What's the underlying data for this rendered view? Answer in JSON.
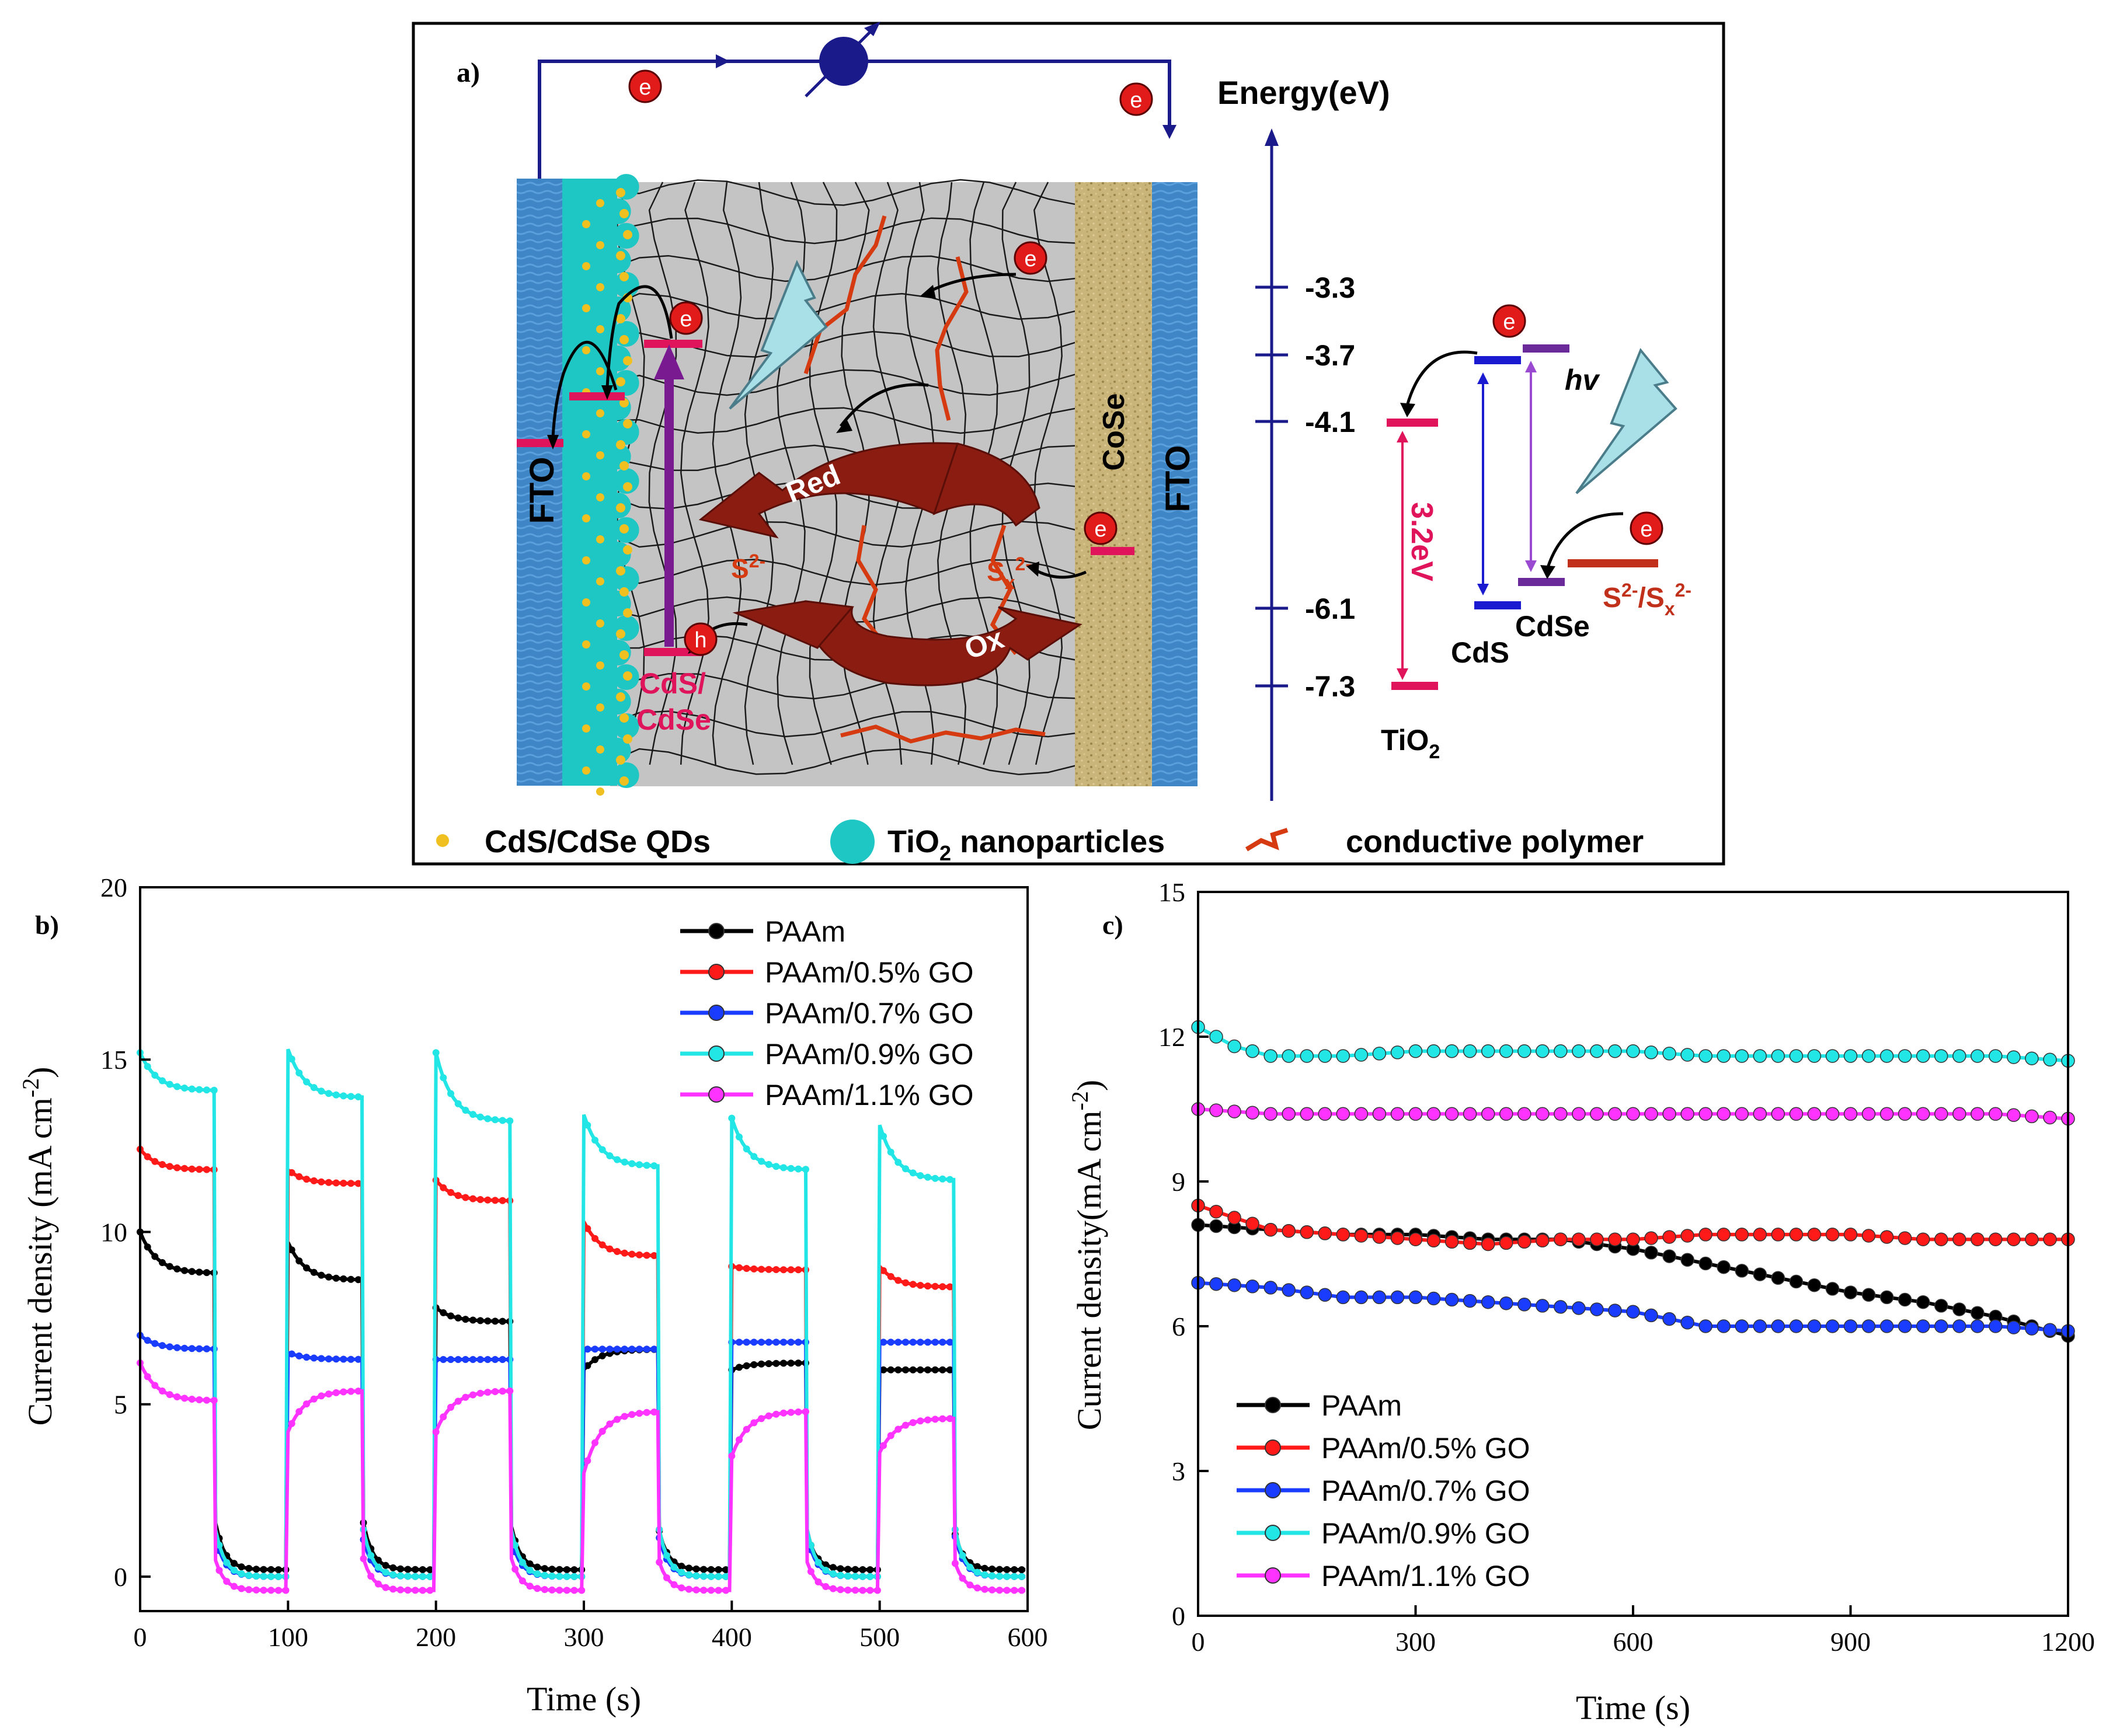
{
  "panel_a": {
    "label": "a)",
    "energy_title": "Energy(eV)",
    "energy_ticks": [
      "-3.3",
      "-3.7",
      "-4.1",
      "-6.1",
      "-7.3"
    ],
    "electron_symbol": "e",
    "hole_symbol": "h",
    "fto_left": "FTO",
    "fto_right": "FTO",
    "cose_label": "CoSe",
    "red_label": "Red",
    "ox_label": "Ox",
    "s2_label": "S",
    "s2_sup": "2-",
    "sx_label": "S",
    "sx_sub": "x",
    "sx_sup": "2-",
    "cds_cdse_line1": "CdS/",
    "cds_cdse_line2": "CdSe",
    "bandgap_label": "3.2eV",
    "hv_label": "hv",
    "cds_label": "CdS",
    "cdse_label": "CdSe",
    "tio2_label": "TiO",
    "tio2_sub": "2",
    "redox_label": "S",
    "redox_sup1": "2-",
    "redox_mid": "/S",
    "redox_sub": "x",
    "redox_sup2": "2-",
    "legend_qds": "CdS/CdSe QDs",
    "legend_tio2": "TiO",
    "legend_tio2_sub": "2",
    "legend_tio2_rest": " nanoparticles",
    "legend_polymer": "conductive polymer"
  },
  "chart_data": [
    {
      "type": "line",
      "panel": "b)",
      "title": "",
      "xlabel": "Time (s)",
      "ylabel": "Current density (mA cm",
      "ylabel_sup": "-2",
      "ylabel_close": ")",
      "xlim": [
        0,
        600
      ],
      "ylim": [
        -1,
        20
      ],
      "xticks": [
        "0",
        "100",
        "200",
        "300",
        "400",
        "500",
        "600"
      ],
      "yticks": [
        "0",
        "5",
        "10",
        "15",
        "20"
      ],
      "on_periods": [
        [
          0,
          50
        ],
        [
          100,
          150
        ],
        [
          200,
          250
        ],
        [
          300,
          350
        ],
        [
          400,
          450
        ],
        [
          500,
          550
        ]
      ],
      "series": [
        {
          "name": "PAAm",
          "color": "#000000",
          "on_start": [
            10.0,
            9.7,
            7.8,
            6.0,
            6.0,
            6.0
          ],
          "on_end": [
            8.8,
            8.6,
            7.4,
            6.6,
            6.2,
            6.0
          ],
          "off_level": 0.2
        },
        {
          "name": "PAAm/0.5% GO",
          "color": "#ff1a1a",
          "on_start": [
            12.4,
            11.8,
            11.5,
            10.3,
            9.0,
            9.0
          ],
          "on_end": [
            11.8,
            11.4,
            10.9,
            9.3,
            8.9,
            8.4
          ],
          "off_level": 0.0
        },
        {
          "name": "PAAm/0.7% GO",
          "color": "#1a3cff",
          "on_start": [
            7.0,
            6.5,
            6.3,
            6.6,
            6.8,
            6.8
          ],
          "on_end": [
            6.6,
            6.3,
            6.3,
            6.6,
            6.8,
            6.8
          ],
          "off_level": 0.0
        },
        {
          "name": "PAAm/0.9% GO",
          "color": "#22e5e5",
          "on_start": [
            15.2,
            15.3,
            15.2,
            13.4,
            13.3,
            13.1
          ],
          "on_end": [
            14.1,
            13.9,
            13.2,
            11.9,
            11.8,
            11.5
          ],
          "off_level": 0.0
        },
        {
          "name": "PAAm/1.1% GO",
          "color": "#ff33ff",
          "on_start": [
            6.2,
            4.2,
            4.2,
            3.0,
            3.5,
            3.6
          ],
          "on_end": [
            5.1,
            5.4,
            5.4,
            4.8,
            4.8,
            4.6
          ],
          "off_level": -0.4
        }
      ]
    },
    {
      "type": "line",
      "panel": "c)",
      "title": "",
      "xlabel": "Time (s)",
      "ylabel": "Current density(mA cm",
      "ylabel_sup": "-2",
      "ylabel_close": ")",
      "xlim": [
        0,
        1200
      ],
      "ylim": [
        0,
        15
      ],
      "xticks": [
        "0",
        "300",
        "600",
        "900",
        "1200"
      ],
      "yticks": [
        "0",
        "3",
        "6",
        "9",
        "12",
        "15"
      ],
      "series": [
        {
          "name": "PAAm",
          "color": "#000000",
          "x": [
            0,
            100,
            200,
            300,
            400,
            500,
            600,
            700,
            800,
            900,
            1000,
            1100,
            1200
          ],
          "y": [
            8.1,
            8.0,
            7.9,
            7.9,
            7.8,
            7.8,
            7.6,
            7.3,
            7.0,
            6.7,
            6.5,
            6.2,
            5.8
          ]
        },
        {
          "name": "PAAm/0.5% GO",
          "color": "#ff1a1a",
          "x": [
            0,
            100,
            200,
            300,
            400,
            500,
            600,
            700,
            800,
            900,
            1000,
            1100,
            1200
          ],
          "y": [
            8.5,
            8.0,
            7.9,
            7.8,
            7.7,
            7.8,
            7.8,
            7.9,
            7.9,
            7.9,
            7.8,
            7.8,
            7.8
          ]
        },
        {
          "name": "PAAm/0.7% GO",
          "color": "#1a3cff",
          "x": [
            0,
            100,
            200,
            300,
            400,
            500,
            600,
            700,
            800,
            900,
            1000,
            1100,
            1200
          ],
          "y": [
            6.9,
            6.8,
            6.6,
            6.6,
            6.5,
            6.4,
            6.3,
            6.0,
            6.0,
            6.0,
            6.0,
            6.0,
            5.9
          ]
        },
        {
          "name": "PAAm/0.9% GO",
          "color": "#22e5e5",
          "x": [
            0,
            50,
            100,
            200,
            300,
            400,
            500,
            600,
            700,
            800,
            900,
            1000,
            1100,
            1200
          ],
          "y": [
            12.2,
            11.8,
            11.6,
            11.6,
            11.7,
            11.7,
            11.7,
            11.7,
            11.6,
            11.6,
            11.6,
            11.6,
            11.6,
            11.5
          ]
        },
        {
          "name": "PAAm/1.1% GO",
          "color": "#ff33ff",
          "x": [
            0,
            100,
            200,
            300,
            400,
            500,
            600,
            700,
            800,
            900,
            1000,
            1100,
            1200
          ],
          "y": [
            10.5,
            10.4,
            10.4,
            10.4,
            10.4,
            10.4,
            10.4,
            10.4,
            10.4,
            10.4,
            10.4,
            10.4,
            10.3
          ]
        }
      ]
    }
  ]
}
